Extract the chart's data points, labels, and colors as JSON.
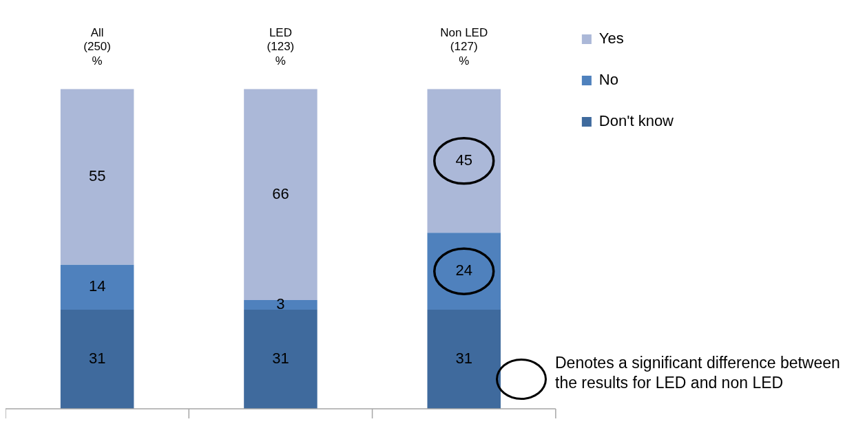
{
  "chart_data": {
    "type": "bar",
    "stacked": true,
    "categories": [
      "All\n(250)\n%",
      "LED\n(123)\n%",
      "Non LED\n(127)\n%"
    ],
    "series": [
      {
        "name": "Don't know",
        "color": "#3f6a9d",
        "values": [
          31,
          31,
          31
        ]
      },
      {
        "name": "No",
        "color": "#4f81bd",
        "values": [
          14,
          3,
          24
        ]
      },
      {
        "name": "Yes",
        "color": "#abb8d8",
        "values": [
          55,
          66,
          45
        ]
      }
    ],
    "ylim": [
      0,
      100
    ],
    "tick_labels": "x",
    "data_labels": true,
    "legend": "top right",
    "grid": false,
    "annotations": [
      "Denotes a significant difference between the results for LED and non LED"
    ]
  }
}
